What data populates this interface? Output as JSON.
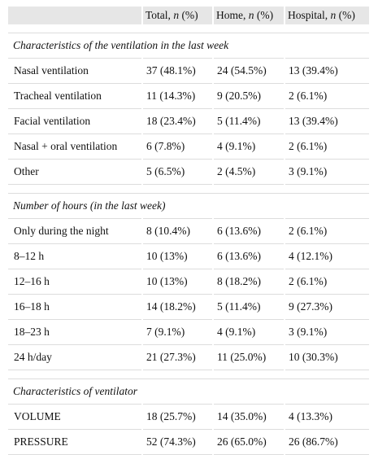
{
  "table": {
    "header": [
      {
        "before": "",
        "italic": "",
        "after": ""
      },
      {
        "before": "Total, ",
        "italic": "n",
        "after": " (%)"
      },
      {
        "before": "Home, ",
        "italic": "n",
        "after": " (%)"
      },
      {
        "before": "Hospital, ",
        "italic": "n",
        "after": " (%)"
      }
    ],
    "sections": [
      {
        "title": "Characteristics of the ventilation in the last week",
        "rows": [
          [
            "Nasal ventilation",
            "37 (48.1%)",
            "24 (54.5%)",
            "13 (39.4%)"
          ],
          [
            "Tracheal ventilation",
            "11 (14.3%)",
            "9 (20.5%)",
            "2 (6.1%)"
          ],
          [
            "Facial ventilation",
            "18 (23.4%)",
            "5 (11.4%)",
            "13 (39.4%)"
          ],
          [
            "Nasal + oral ventilation",
            "6 (7.8%)",
            "4 (9.1%)",
            "2 (6.1%)"
          ],
          [
            "Other",
            "5 (6.5%)",
            "2 (4.5%)",
            "3 (9.1%)"
          ]
        ]
      },
      {
        "title": "Number of hours (in the last week)",
        "rows": [
          [
            "Only during the night",
            "8 (10.4%)",
            "6 (13.6%)",
            "2 (6.1%)"
          ],
          [
            "8–12 h",
            "10 (13%)",
            "6 (13.6%)",
            "4 (12.1%)"
          ],
          [
            "12–16 h",
            "10 (13%)",
            "8 (18.2%)",
            "2 (6.1%)"
          ],
          [
            "16–18 h",
            "14 (18.2%)",
            "5 (11.4%)",
            "9 (27.3%)"
          ],
          [
            "18–23 h",
            "7 (9.1%)",
            "4 (9.1%)",
            "3 (9.1%)"
          ],
          [
            "24 h/day",
            "21 (27.3%)",
            "11 (25.0%)",
            "10 (30.3%)"
          ]
        ]
      },
      {
        "title": "Characteristics of ventilator",
        "rows": [
          [
            "VOLUME",
            "18 (25.7%)",
            "14 (35.0%)",
            "4 (13.3%)"
          ],
          [
            "PRESSURE",
            "52 (74.3%)",
            "26 (65.0%)",
            "26 (86.7%)"
          ]
        ]
      }
    ]
  }
}
